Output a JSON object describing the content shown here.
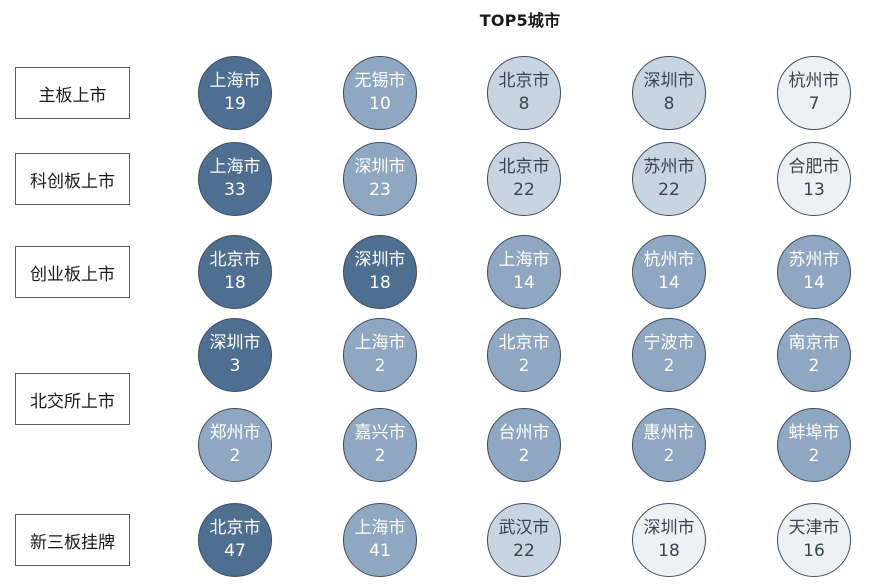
{
  "title": "TOP5城市",
  "boards": [
    {
      "label": "主板上市",
      "rows": [
        [
          {
            "city": "上海市",
            "count": "19",
            "level": 1
          },
          {
            "city": "无锡市",
            "count": "10",
            "level": 2
          },
          {
            "city": "北京市",
            "count": "8",
            "level": 3
          },
          {
            "city": "深圳市",
            "count": "8",
            "level": 3
          },
          {
            "city": "杭州市",
            "count": "7",
            "level": 4
          }
        ]
      ]
    },
    {
      "label": "科创板上市",
      "rows": [
        [
          {
            "city": "上海市",
            "count": "33",
            "level": 1
          },
          {
            "city": "深圳市",
            "count": "23",
            "level": 2
          },
          {
            "city": "北京市",
            "count": "22",
            "level": 3
          },
          {
            "city": "苏州市",
            "count": "22",
            "level": 3
          },
          {
            "city": "合肥市",
            "count": "13",
            "level": 4
          }
        ]
      ]
    },
    {
      "label": "创业板上市",
      "rows": [
        [
          {
            "city": "北京市",
            "count": "18",
            "level": 1
          },
          {
            "city": "深圳市",
            "count": "18",
            "level": 1
          },
          {
            "city": "上海市",
            "count": "14",
            "level": 2
          },
          {
            "city": "杭州市",
            "count": "14",
            "level": 2
          },
          {
            "city": "苏州市",
            "count": "14",
            "level": 2
          }
        ]
      ]
    },
    {
      "label": "北交所上市",
      "rows": [
        [
          {
            "city": "深圳市",
            "count": "3",
            "level": 1
          },
          {
            "city": "上海市",
            "count": "2",
            "level": 2
          },
          {
            "city": "北京市",
            "count": "2",
            "level": 2
          },
          {
            "city": "宁波市",
            "count": "2",
            "level": 2
          },
          {
            "city": "南京市",
            "count": "2",
            "level": 2
          }
        ],
        [
          {
            "city": "郑州市",
            "count": "2",
            "level": 2
          },
          {
            "city": "嘉兴市",
            "count": "2",
            "level": 2
          },
          {
            "city": "台州市",
            "count": "2",
            "level": 2
          },
          {
            "city": "惠州市",
            "count": "2",
            "level": 2
          },
          {
            "city": "蚌埠市",
            "count": "2",
            "level": 2
          }
        ]
      ]
    },
    {
      "label": "新三板挂牌",
      "rows": [
        [
          {
            "city": "北京市",
            "count": "47",
            "level": 1
          },
          {
            "city": "上海市",
            "count": "41",
            "level": 2
          },
          {
            "city": "武汉市",
            "count": "22",
            "level": 3
          },
          {
            "city": "深圳市",
            "count": "18",
            "level": 4
          },
          {
            "city": "天津市",
            "count": "16",
            "level": 4
          }
        ]
      ]
    }
  ]
}
